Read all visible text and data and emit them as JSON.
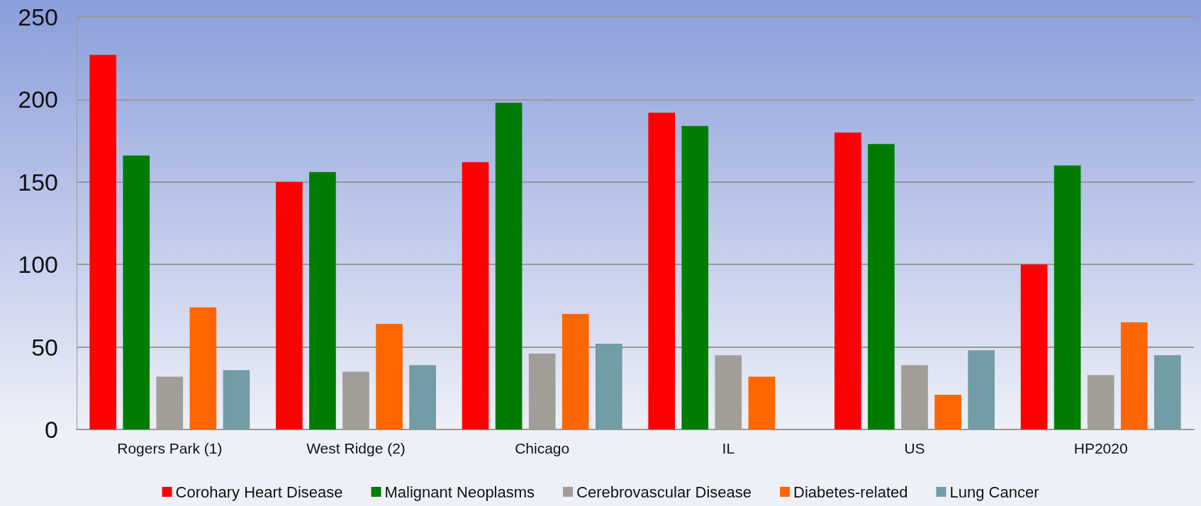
{
  "chart_data": {
    "type": "bar",
    "categories": [
      "Rogers Park (1)",
      "West Ridge (2)",
      "Chicago",
      "IL",
      "US",
      "HP2020"
    ],
    "series": [
      {
        "name": "Corohary Heart Disease",
        "color": "#ff0000",
        "values": [
          227,
          150,
          162,
          192,
          180,
          100
        ]
      },
      {
        "name": "Malignant Neoplasms",
        "color": "#007d00",
        "values": [
          166,
          156,
          198,
          184,
          173,
          160
        ]
      },
      {
        "name": "Cerebrovascular Disease",
        "color": "#a09e96",
        "values": [
          32,
          35,
          46,
          45,
          39,
          33
        ]
      },
      {
        "name": "Diabetes-related",
        "color": "#ff6600",
        "values": [
          74,
          64,
          70,
          32,
          21,
          65
        ]
      },
      {
        "name": "Lung Cancer",
        "color": "#729ca6",
        "values": [
          36,
          39,
          52,
          null,
          48,
          45
        ]
      }
    ],
    "ylim": [
      0,
      250
    ],
    "yticks": [
      0,
      50,
      100,
      150,
      200,
      250
    ],
    "grid": "y",
    "legend": "bottom"
  }
}
